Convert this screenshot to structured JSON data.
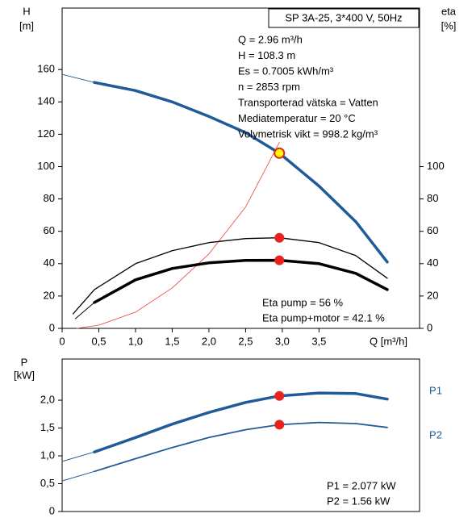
{
  "chart_data": [
    {
      "type": "line",
      "title": "SP 3A-25, 3*400 V, 50Hz",
      "ylabel": "H",
      "yunit": "[m]",
      "y2label": "eta",
      "y2unit": "[%]",
      "xlabel": "Q [m³/h]",
      "xlim": [
        0,
        4.87
      ],
      "ylim": [
        0,
        198
      ],
      "y2lim": [
        0,
        198
      ],
      "xticks": [
        0,
        {
          "value": 0.5,
          "label": "0,5"
        },
        {
          "value": 1,
          "label": "1,0"
        },
        {
          "value": 1.5,
          "label": "1,5"
        },
        {
          "value": 2,
          "label": "2,0"
        },
        {
          "value": 2.5,
          "label": "2,5"
        },
        {
          "value": 3,
          "label": "3,0"
        },
        {
          "value": 3.5,
          "label": "3,5"
        }
      ],
      "yticks": [
        0,
        20,
        40,
        60,
        80,
        100,
        120,
        140,
        160
      ],
      "y2ticks": [
        0,
        20,
        40,
        60,
        80,
        100
      ],
      "annotations": [
        "Q = 2.96 m³/h",
        "H = 108.3 m",
        "Es = 0.7005 kWh/m³",
        "n = 2853 rpm",
        "Transporterad vätska = Vatten",
        "Mediatemperatur = 20 °C",
        "Volymetrisk vikt = 998.2 kg/m³",
        "Eta pump = 56 %",
        "Eta pump+motor = 42.1 %"
      ],
      "series": [
        {
          "color": "#e8443a",
          "width": 0.8,
          "x": [
            0.2,
            0.5,
            1.0,
            1.5,
            2.0,
            2.5,
            2.96
          ],
          "values": [
            0,
            2,
            10,
            25,
            46,
            75,
            115
          ]
        },
        {
          "color": "#1f5b99",
          "width": 1,
          "x": [
            0,
            0.44
          ],
          "values": [
            157,
            152
          ]
        },
        {
          "color": "#1f5b99",
          "width": 3.5,
          "x": [
            0.44,
            1.0,
            1.5,
            2.0,
            2.5,
            2.96,
            3.5,
            4.0,
            4.43
          ],
          "values": [
            152,
            147,
            140,
            131,
            121,
            108.3,
            88,
            66,
            41
          ]
        },
        {
          "color": "#000000",
          "width": 1.3,
          "axis": "y2",
          "x": [
            0.15,
            0.44,
            1.0,
            1.5,
            2.0,
            2.5,
            2.96,
            3.5,
            4.0,
            4.43
          ],
          "values": [
            9,
            24,
            40,
            48,
            53,
            55.5,
            56,
            53,
            45,
            31
          ]
        },
        {
          "color": "#000000",
          "width": 1,
          "axis": "y2",
          "x": [
            0.18,
            0.44
          ],
          "values": [
            6,
            16
          ]
        },
        {
          "color": "#000000",
          "width": 3.5,
          "axis": "y2",
          "x": [
            0.44,
            1.0,
            1.5,
            2.0,
            2.5,
            2.96,
            3.5,
            4.0,
            4.43
          ],
          "values": [
            16,
            30,
            37,
            40.5,
            42,
            42.1,
            40,
            34,
            24
          ]
        },
        {
          "style": "marker",
          "color": "#e8231d",
          "axis": "y2",
          "x": [
            2.96,
            2.96
          ],
          "values": [
            56,
            42.1
          ]
        },
        {
          "style": "marker",
          "color": "#e8231d",
          "fill": "#ffff00",
          "x": [
            2.96
          ],
          "values": [
            108.3
          ]
        }
      ]
    },
    {
      "type": "line",
      "ylabel": "P",
      "yunit": "[kW]",
      "xlim": [
        0,
        4.87
      ],
      "ylim": [
        0,
        2.74
      ],
      "yticks": [
        0,
        {
          "value": 0.5,
          "label": "0,5"
        },
        {
          "value": 1,
          "label": "1,0"
        },
        {
          "value": 1.5,
          "label": "1,5"
        },
        {
          "value": 2,
          "label": "2,0"
        }
      ],
      "annotations": [
        "P1 = 2.077 kW",
        "P2 = 1.56 kW"
      ],
      "series": [
        {
          "color": "#1f5b99",
          "width": 1,
          "x": [
            0,
            0.44
          ],
          "values": [
            0.9,
            1.07
          ]
        },
        {
          "name": "P1",
          "color": "#1f5b99",
          "width": 3.5,
          "x": [
            0.44,
            1.0,
            1.5,
            2.0,
            2.5,
            2.96,
            3.5,
            4.0,
            4.43
          ],
          "values": [
            1.07,
            1.33,
            1.57,
            1.78,
            1.96,
            2.077,
            2.13,
            2.12,
            2.02
          ]
        },
        {
          "color": "#1f5b99",
          "width": 1,
          "x": [
            0,
            0.44
          ],
          "values": [
            0.55,
            0.72
          ]
        },
        {
          "name": "P2",
          "color": "#1f5b99",
          "width": 1.8,
          "x": [
            0.44,
            1.0,
            1.5,
            2.0,
            2.5,
            2.96,
            3.5,
            4.0,
            4.43
          ],
          "values": [
            0.72,
            0.95,
            1.15,
            1.33,
            1.47,
            1.56,
            1.6,
            1.58,
            1.51
          ]
        },
        {
          "style": "marker",
          "color": "#e8231d",
          "x": [
            2.96,
            2.96
          ],
          "values": [
            2.077,
            1.56
          ]
        }
      ]
    }
  ]
}
